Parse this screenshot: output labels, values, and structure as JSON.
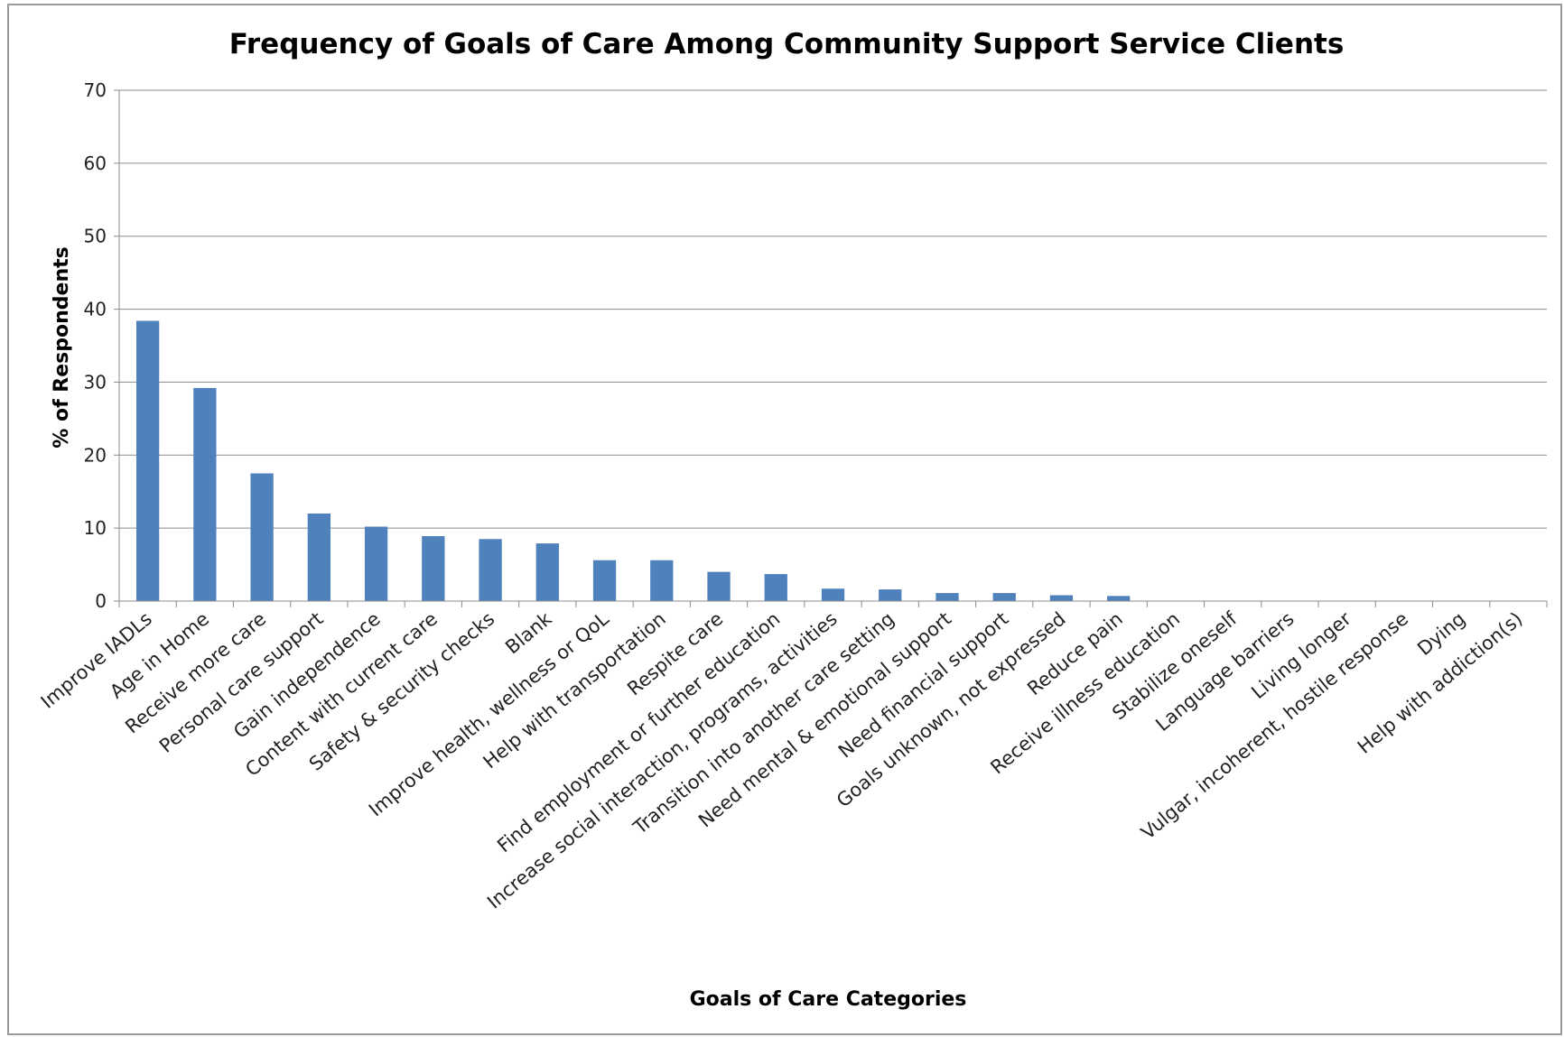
{
  "chart_data": {
    "type": "bar",
    "title": "Frequency of Goals of Care Among Community Support Service Clients",
    "xlabel": "Goals of Care Categories",
    "ylabel": "% of Respondents",
    "ylim": [
      0,
      70
    ],
    "yticks": [
      "0",
      "10",
      "20",
      "30",
      "40",
      "50",
      "60",
      "70"
    ],
    "grid": true,
    "legend": "none",
    "bar_color": "#4f81bd",
    "categories": [
      "Improve IADLs",
      "Age in Home",
      "Receive more care",
      "Personal care support",
      "Gain independence",
      "Content with current care",
      "Safety & security checks",
      "Blank",
      "Improve health, wellness or QoL",
      "Help with transportation",
      "Respite care",
      "Find employment or further education",
      "Increase social interaction, programs, activities",
      "Transition into another care setting",
      "Need mental & emotional support",
      "Need financial support",
      "Goals unknown, not expressed",
      "Reduce pain",
      "Receive illness education",
      "Stabilize oneself",
      "Language barriers",
      "Living longer",
      "Vulgar, incoherent, hostile response",
      "Dying",
      "Help with addiction(s)"
    ],
    "values": [
      38.4,
      29.2,
      17.5,
      12.0,
      10.2,
      8.9,
      8.5,
      7.9,
      5.6,
      5.6,
      4.0,
      3.7,
      1.7,
      1.6,
      1.1,
      1.1,
      0.8,
      0.7,
      0,
      0,
      0,
      0,
      0,
      0,
      0
    ]
  }
}
